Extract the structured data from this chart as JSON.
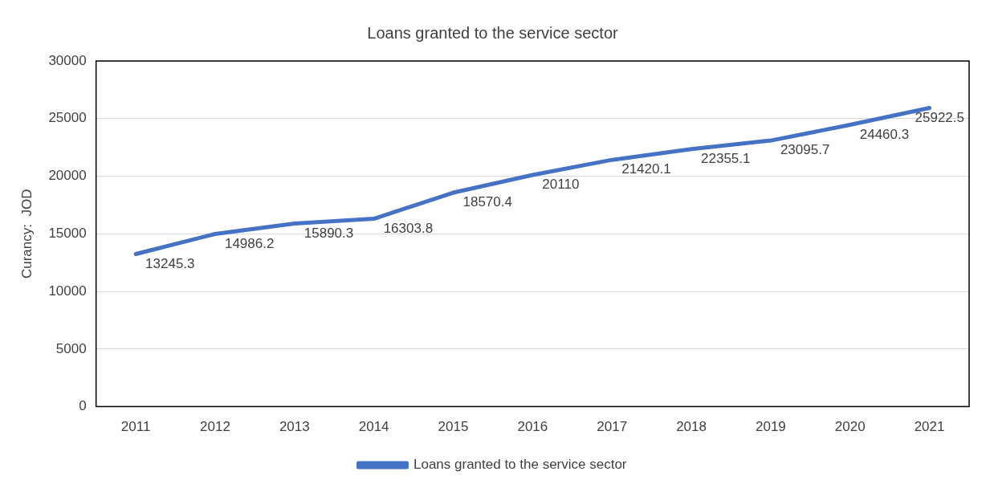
{
  "chart_data": {
    "type": "line",
    "title": "Loans granted to the service sector",
    "ylabel": "Curancy:  JOD",
    "categories": [
      "2011",
      "2012",
      "2013",
      "2014",
      "2015",
      "2016",
      "2017",
      "2018",
      "2019",
      "2020",
      "2021"
    ],
    "series": [
      {
        "name": "Loans granted to the service sector",
        "color": "#4472c4",
        "values": [
          13245.3,
          14986.2,
          15890.3,
          16303.8,
          18570.4,
          20110,
          21420.1,
          22355.1,
          23095.7,
          24460.3,
          25922.5
        ]
      }
    ],
    "ylim": [
      0,
      30000
    ],
    "yticks": [
      0,
      5000,
      10000,
      15000,
      20000,
      25000,
      30000
    ],
    "grid": "y",
    "legend": "bottom",
    "data_labels": true,
    "marker": "none",
    "line_style": "solid"
  }
}
